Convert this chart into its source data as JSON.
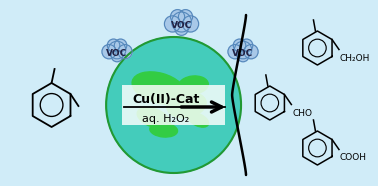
{
  "bg_color": "#d0ecf8",
  "border_color": "#5aabdd",
  "cloud_fill": "#a8c8e8",
  "cloud_edge": "#5588bb",
  "earth_ocean": "#44ccbb",
  "earth_green1": "#33cc44",
  "earth_green2": "#22aa33",
  "earth_border": "#229933",
  "cat_line1": "Cu(II)-Cat",
  "cat_line2": "aq. H₂O₂",
  "voc_text": "VOC",
  "product_labels": [
    "CH₂OH",
    "CHO",
    "COOH"
  ]
}
